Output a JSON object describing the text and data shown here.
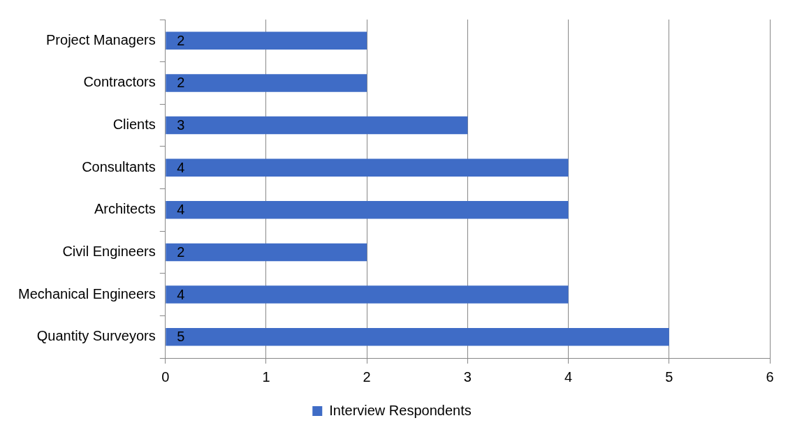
{
  "chart_data": {
    "type": "bar",
    "orientation": "horizontal",
    "categories": [
      "Project Managers",
      "Contractors",
      "Clients",
      "Consultants",
      "Architects",
      "Civil Engineers",
      "Mechanical Engineers",
      "Quantity Surveyors"
    ],
    "series": [
      {
        "name": "Interview Respondents",
        "color": "#3f6cc6",
        "values": [
          2,
          2,
          3,
          4,
          4,
          2,
          4,
          5
        ]
      }
    ],
    "xlim": [
      0,
      6
    ],
    "xticks": [
      0,
      1,
      2,
      3,
      4,
      5,
      6
    ],
    "grid": "x",
    "legend": "bottom",
    "data_labels": true
  }
}
